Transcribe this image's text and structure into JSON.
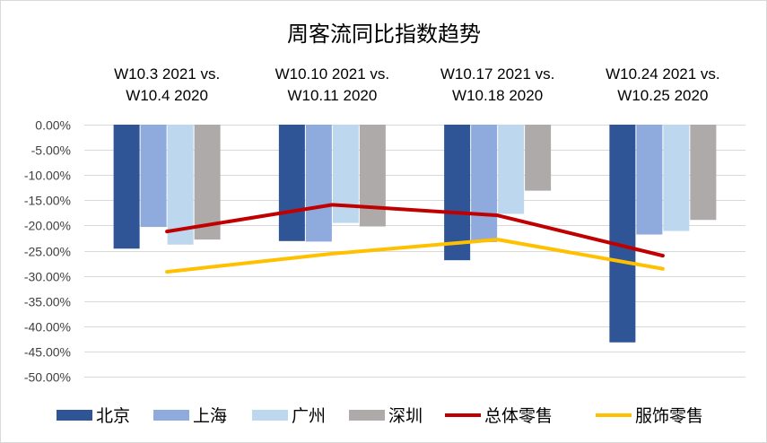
{
  "chart_data": {
    "type": "bar",
    "title": "周客流同比指数趋势",
    "categories": [
      [
        "W10.3 2021 vs.",
        "W10.4 2020"
      ],
      [
        "W10.10 2021 vs.",
        "W10.11 2020"
      ],
      [
        "W10.17 2021 vs.",
        "W10.18 2020"
      ],
      [
        "W10.24 2021 vs.",
        "W10.25 2020"
      ]
    ],
    "ylim": [
      -50,
      0
    ],
    "ytick_step": 5,
    "ytick_format": "percent_2dp",
    "grid": true,
    "legend_position": "bottom",
    "series": [
      {
        "name": "北京",
        "kind": "bar",
        "color": "#2F5597",
        "values": [
          -24.6,
          -23.1,
          -26.9,
          -43.2
        ]
      },
      {
        "name": "上海",
        "kind": "bar",
        "color": "#8FAADC",
        "values": [
          -20.3,
          -23.2,
          -23.3,
          -21.8
        ]
      },
      {
        "name": "广州",
        "kind": "bar",
        "color": "#BDD7EE",
        "values": [
          -23.8,
          -19.5,
          -17.7,
          -21.1
        ]
      },
      {
        "name": "深圳",
        "kind": "bar",
        "color": "#AEAAAA",
        "values": [
          -22.8,
          -20.2,
          -13.1,
          -18.9
        ]
      },
      {
        "name": "总体零售",
        "kind": "line",
        "color": "#C00000",
        "values": [
          -21.2,
          -15.9,
          -18.0,
          -26.0
        ]
      },
      {
        "name": "服饰零售",
        "kind": "line",
        "color": "#FFC000",
        "values": [
          -29.2,
          -25.6,
          -22.8,
          -28.6
        ]
      }
    ]
  }
}
